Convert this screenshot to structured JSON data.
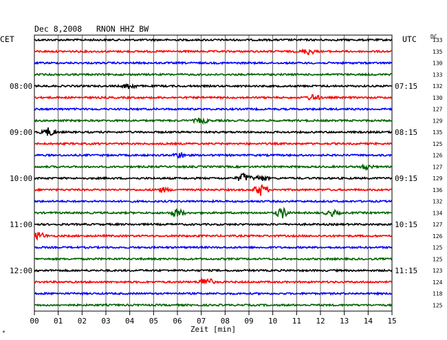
{
  "header": {
    "date": "Dec 8,2008",
    "station": "RNON HHZ BW",
    "left_tz": "CET",
    "right_tz": "UTC",
    "dc_label": "DC"
  },
  "colors": {
    "black": "#000000",
    "red": "#ff0000",
    "blue": "#0000ff",
    "green": "#006400",
    "grid": "#000000"
  },
  "chart_data": {
    "type": "line",
    "title": "Dec 8,2008   RNON HHZ BW",
    "xlabel": "Zeit [min]",
    "xlim": [
      0,
      15
    ],
    "x_ticks": [
      "00",
      "01",
      "02",
      "03",
      "04",
      "05",
      "06",
      "07",
      "08",
      "09",
      "10",
      "11",
      "12",
      "13",
      "14",
      "15"
    ],
    "trace_colors": [
      "black",
      "red",
      "blue",
      "green"
    ],
    "left_hour_labels": [
      {
        "trace": 4,
        "label": "08:00"
      },
      {
        "trace": 8,
        "label": "09:00"
      },
      {
        "trace": 12,
        "label": "10:00"
      },
      {
        "trace": 16,
        "label": "11:00"
      },
      {
        "trace": 20,
        "label": "12:00"
      }
    ],
    "right_hour_labels": [
      {
        "trace": 4,
        "label": "07:15"
      },
      {
        "trace": 8,
        "label": "08:15"
      },
      {
        "trace": 12,
        "label": "09:15"
      },
      {
        "trace": 16,
        "label": "10:15"
      },
      {
        "trace": 20,
        "label": "11:15"
      }
    ],
    "dc_offsets": [
      "133",
      "135",
      "130",
      "133",
      "132",
      "130",
      "127",
      "129",
      "135",
      "125",
      "126",
      "127",
      "129",
      "136",
      "132",
      "134",
      "127",
      "126",
      "125",
      "125",
      "123",
      "124",
      "118",
      "125"
    ],
    "events": [
      {
        "trace": 1,
        "minute": 11.5,
        "amplitude": 4
      },
      {
        "trace": 4,
        "minute": 4.0,
        "amplitude": 4
      },
      {
        "trace": 5,
        "minute": 11.7,
        "amplitude": 4
      },
      {
        "trace": 7,
        "minute": 7.0,
        "amplitude": 4
      },
      {
        "trace": 8,
        "minute": 0.6,
        "amplitude": 6
      },
      {
        "trace": 10,
        "minute": 6.1,
        "amplitude": 4
      },
      {
        "trace": 11,
        "minute": 13.9,
        "amplitude": 3
      },
      {
        "trace": 12,
        "minute": 8.8,
        "amplitude": 7
      },
      {
        "trace": 12,
        "minute": 9.5,
        "amplitude": 4
      },
      {
        "trace": 13,
        "minute": 9.5,
        "amplitude": 8
      },
      {
        "trace": 13,
        "minute": 5.4,
        "amplitude": 3
      },
      {
        "trace": 15,
        "minute": 6.0,
        "amplitude": 6
      },
      {
        "trace": 15,
        "minute": 10.4,
        "amplitude": 7
      },
      {
        "trace": 15,
        "minute": 12.5,
        "amplitude": 4
      },
      {
        "trace": 17,
        "minute": 0.2,
        "amplitude": 5
      },
      {
        "trace": 21,
        "minute": 7.2,
        "amplitude": 7
      }
    ]
  }
}
